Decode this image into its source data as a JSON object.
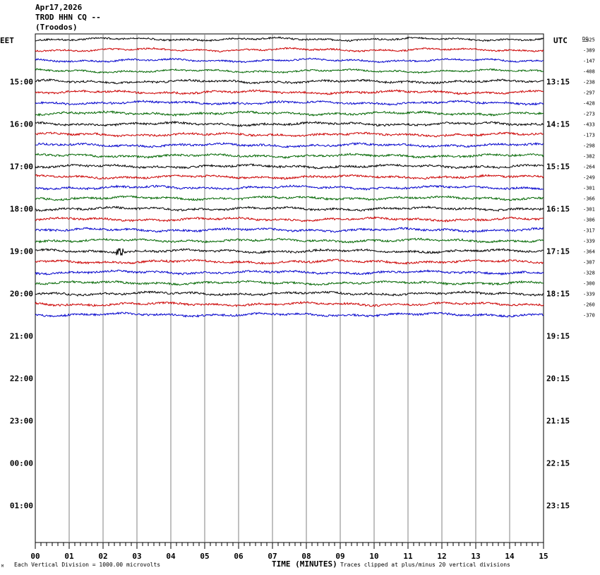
{
  "header": {
    "date": "Apr17,2026",
    "station": "TROD HHN CQ --",
    "location": "(Troodos)",
    "left_zone": "EET",
    "right_zone": "UTC",
    "dc_label": "DC"
  },
  "footer": {
    "scale_note": "Each Vertical Division = 1000.00 microvolts",
    "clip_note": "Traces clipped at plus/minus 20 vertical divisions",
    "corner_mark": "M"
  },
  "chart_data": {
    "type": "line",
    "title": "",
    "xlabel": "TIME (MINUTES)",
    "ylabel": "",
    "xlim": [
      0,
      15
    ],
    "x_ticks": [
      "00",
      "01",
      "02",
      "03",
      "04",
      "05",
      "06",
      "07",
      "08",
      "09",
      "10",
      "11",
      "12",
      "13",
      "14",
      "15"
    ],
    "rows_total": 48,
    "row_minutes": 15,
    "left_hour_labels": [
      "15:00",
      "16:00",
      "17:00",
      "18:00",
      "19:00",
      "20:00",
      "21:00",
      "22:00",
      "23:00",
      "00:00",
      "01:00"
    ],
    "right_hour_labels": [
      "13:15",
      "14:15",
      "15:15",
      "16:15",
      "17:15",
      "18:15",
      "19:15",
      "20:15",
      "21:15",
      "22:15",
      "23:15"
    ],
    "trace_colors": [
      "#000000",
      "#cc0000",
      "#0000cc",
      "#006600"
    ],
    "dc_offsets": [
      -425,
      -389,
      -147,
      -408,
      -238,
      -297,
      -428,
      -273,
      -433,
      -173,
      -298,
      -382,
      -264,
      -249,
      -301,
      -366,
      -301,
      -306,
      -317,
      -339,
      -364,
      -307,
      -328,
      -300,
      -339,
      -260,
      -370
    ],
    "event": {
      "row": 20,
      "minute": 2.5,
      "label": ""
    }
  }
}
